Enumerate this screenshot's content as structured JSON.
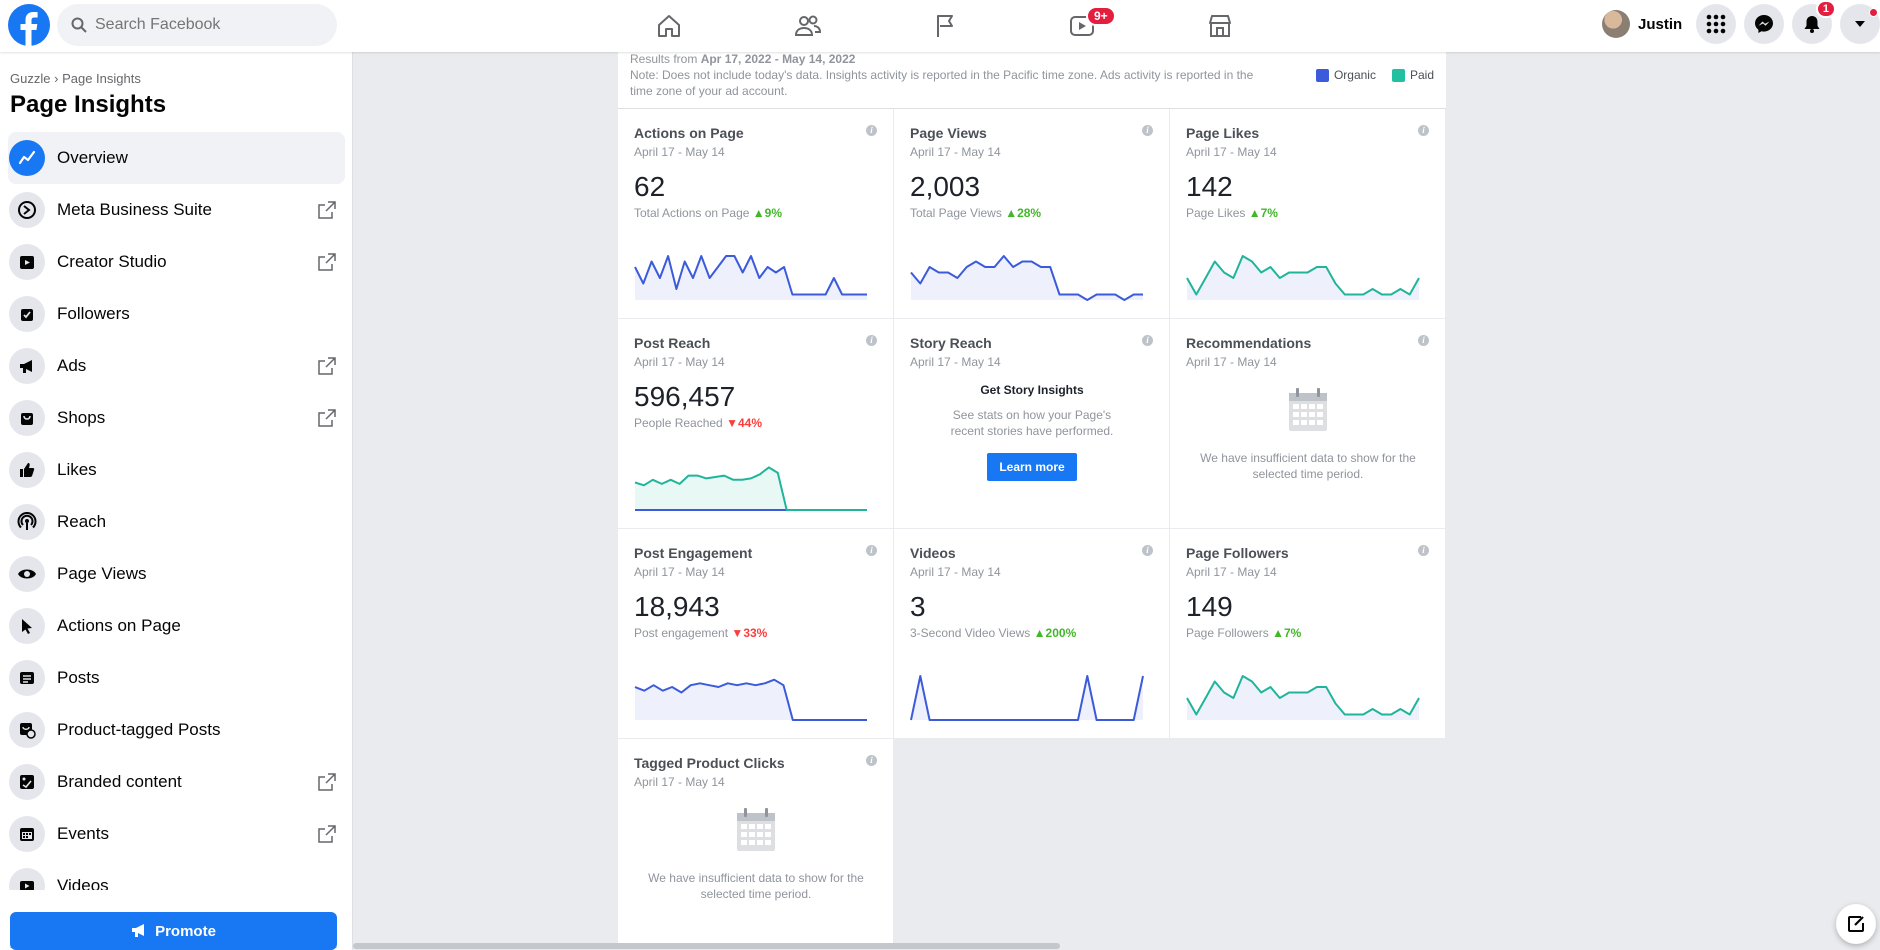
{
  "topbar": {
    "search_placeholder": "Search Facebook",
    "watch_badge": "9+",
    "profile_name": "Justin",
    "notifications_badge": "1"
  },
  "sidebar": {
    "breadcrumb_page": "Guzzle",
    "breadcrumb_sep": "›",
    "breadcrumb_current": "Page Insights",
    "title": "Page Insights",
    "items": [
      {
        "label": "Overview",
        "icon": "trend-icon",
        "active": true,
        "external": false
      },
      {
        "label": "Meta Business Suite",
        "icon": "business-suite-icon",
        "external": true
      },
      {
        "label": "Creator Studio",
        "icon": "creator-studio-icon",
        "external": true
      },
      {
        "label": "Followers",
        "icon": "followers-icon",
        "external": false
      },
      {
        "label": "Ads",
        "icon": "megaphone-icon",
        "external": true
      },
      {
        "label": "Shops",
        "icon": "shop-bag-icon",
        "external": true
      },
      {
        "label": "Likes",
        "icon": "thumbs-up-icon",
        "external": false
      },
      {
        "label": "Reach",
        "icon": "broadcast-icon",
        "external": false
      },
      {
        "label": "Page Views",
        "icon": "eye-icon",
        "external": false
      },
      {
        "label": "Actions on Page",
        "icon": "cursor-icon",
        "external": false
      },
      {
        "label": "Posts",
        "icon": "posts-icon",
        "external": false
      },
      {
        "label": "Product-tagged Posts",
        "icon": "product-tag-icon",
        "external": false
      },
      {
        "label": "Branded content",
        "icon": "branded-content-icon",
        "external": true
      },
      {
        "label": "Events",
        "icon": "calendar-icon",
        "external": true
      },
      {
        "label": "Videos",
        "icon": "video-icon",
        "external": false
      }
    ],
    "promote_label": "Promote"
  },
  "summary": {
    "range_prefix": "Results from ",
    "range": "Apr 17, 2022 - May 14, 2022",
    "note": "Note: Does not include today's data. Insights activity is reported in the Pacific time zone. Ads activity is reported in the time zone of your ad account.",
    "legend_organic": "Organic",
    "legend_paid": "Paid",
    "color_organic": "#3b5bdb",
    "color_paid": "#20c0a0"
  },
  "cards": {
    "actions": {
      "title": "Actions on Page",
      "date": "April 17 - May 14",
      "value": "62",
      "metric": "Total Actions on Page",
      "trend": "9%",
      "trend_dir": "up",
      "spark": [
        6,
        3,
        7,
        4,
        8,
        2,
        7,
        4,
        8,
        4,
        6,
        8,
        8,
        5,
        8,
        4,
        6,
        5,
        6,
        1,
        1,
        1,
        1,
        1,
        4,
        1,
        1,
        1,
        1
      ]
    },
    "page_views": {
      "title": "Page Views",
      "date": "April 17 - May 14",
      "value": "2,003",
      "metric": "Total Page Views",
      "trend": "28%",
      "trend_dir": "up",
      "spark": [
        5,
        3,
        6,
        5,
        5,
        4,
        6,
        7,
        6,
        6,
        8,
        6,
        7,
        7,
        6,
        6,
        1,
        1,
        1,
        0,
        1,
        1,
        1,
        0,
        1,
        1
      ]
    },
    "page_likes": {
      "title": "Page Likes",
      "date": "April 17 - May 14",
      "value": "142",
      "metric": "Page Likes",
      "trend": "7%",
      "trend_dir": "up",
      "spark": [
        4,
        1,
        4,
        7,
        5,
        4,
        8,
        7,
        5,
        6,
        4,
        5,
        5,
        5,
        6,
        6,
        3,
        1,
        1,
        1,
        2,
        1,
        1,
        2,
        1,
        4
      ]
    },
    "post_reach": {
      "title": "Post Reach",
      "date": "April 17 - May 14",
      "value": "596,457",
      "metric": "People Reached",
      "trend": "44%",
      "trend_dir": "down",
      "spark": [
        20,
        18,
        22,
        19,
        22,
        19,
        25,
        25,
        23,
        24,
        25,
        22,
        22,
        23,
        26,
        31,
        27,
        0,
        0,
        0,
        0,
        0,
        0,
        0,
        0,
        0,
        0
      ]
    },
    "story_reach": {
      "title": "Story Reach",
      "date": "April 17 - May 14",
      "heading": "Get Story Insights",
      "text": "See stats on how your Page's recent stories have performed.",
      "button": "Learn more"
    },
    "recommendations": {
      "title": "Recommendations",
      "date": "April 17 - May 14",
      "empty_text": "We have insufficient data to show for the selected time period."
    },
    "post_engagement": {
      "title": "Post Engagement",
      "date": "April 17 - May 14",
      "value": "18,943",
      "metric": "Post engagement",
      "trend": "33%",
      "trend_dir": "down",
      "spark": [
        18,
        16,
        19,
        16,
        18,
        15,
        19,
        20,
        19,
        18,
        20,
        19,
        20,
        19,
        20,
        22,
        19,
        0,
        0,
        0,
        0,
        0,
        0,
        0,
        0,
        0
      ]
    },
    "videos": {
      "title": "Videos",
      "date": "April 17 - May 14",
      "value": "3",
      "metric": "3-Second Video Views",
      "trend": "200%",
      "trend_dir": "up",
      "spark": [
        0,
        12,
        0,
        0,
        0,
        0,
        0,
        0,
        0,
        0,
        0,
        0,
        0,
        0,
        0,
        0,
        0,
        0,
        0,
        12,
        0,
        0,
        0,
        0,
        0,
        12
      ]
    },
    "page_followers": {
      "title": "Page Followers",
      "date": "April 17 - May 14",
      "value": "149",
      "metric": "Page Followers",
      "trend": "7%",
      "trend_dir": "up",
      "spark": [
        4,
        1,
        4,
        7,
        5,
        4,
        8,
        7,
        5,
        6,
        4,
        5,
        5,
        5,
        6,
        6,
        3,
        1,
        1,
        1,
        2,
        1,
        1,
        2,
        1,
        4
      ]
    },
    "tagged_clicks": {
      "title": "Tagged Product Clicks",
      "date": "April 17 - May 14",
      "empty_text": "We have insufficient data to show for the selected time period."
    }
  }
}
